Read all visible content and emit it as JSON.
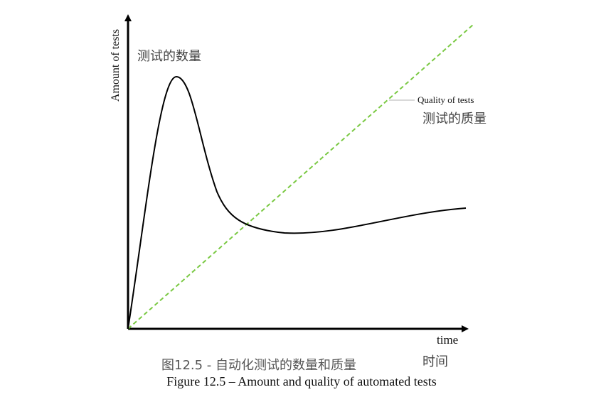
{
  "diagram": {
    "y_axis_label": "Amount of tests",
    "y_axis_label_cn": "测试的数量",
    "x_axis_label": "time",
    "x_axis_label_cn": "时间",
    "quality_label": "Quality of tests",
    "quality_label_cn": "测试的质量",
    "colors": {
      "axis": "#000000",
      "amount_curve": "#000000",
      "quality_line": "#7ac943",
      "leader_line": "#9a9a9a"
    }
  },
  "caption": {
    "cn": "图12.5 - 自动化测试的数量和质量",
    "en": "Figure 12.5 – Amount and quality of automated tests"
  }
}
